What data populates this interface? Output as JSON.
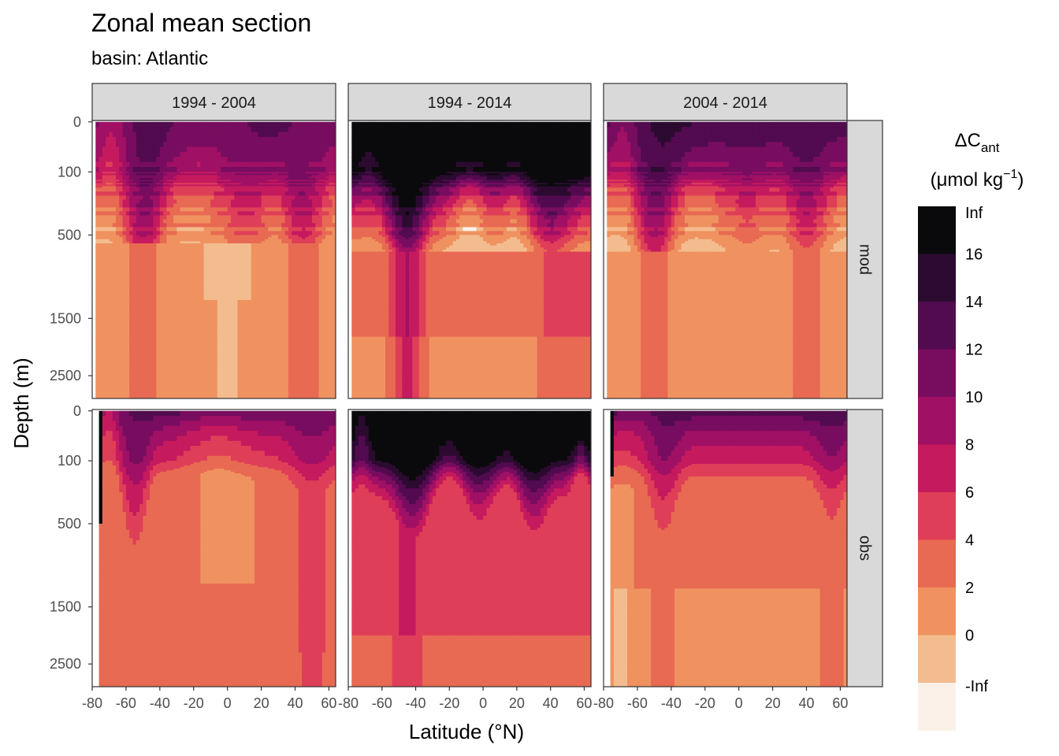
{
  "chart_data": {
    "type": "heatmap",
    "title": "Zonal mean section",
    "subtitle": "basin: Atlantic",
    "xlabel": "Latitude (°N)",
    "ylabel": "Depth (m)",
    "xlim": [
      -80,
      64
    ],
    "x_ticks": [
      -80,
      -60,
      -40,
      -20,
      0,
      20,
      40,
      60
    ],
    "x_tick_labels": [
      "-80",
      "-60",
      "-40",
      "-20",
      "0",
      "20",
      "40",
      "60"
    ],
    "y_ticks": [
      0,
      100,
      500,
      1500,
      2500
    ],
    "y_tick_labels": [
      "0",
      "100",
      "500",
      "1500",
      "2500"
    ],
    "y_scale": "sqrt, reversed",
    "columns": [
      "1994 - 2004",
      "1994 - 2014",
      "2004 - 2014"
    ],
    "rows": [
      "mod",
      "obs"
    ],
    "legend": {
      "title_main": "ΔC",
      "title_sub": "ant",
      "unit_main": "(μmol kg",
      "unit_sup": "−1",
      "unit_end": ")",
      "placement": "right",
      "labels": [
        "Inf",
        "16",
        "14",
        "12",
        "10",
        "8",
        "6",
        "4",
        "2",
        "0",
        "-Inf"
      ],
      "colors": [
        "#0a0a0c",
        "#2c0b30",
        "#520b4f",
        "#780d60",
        "#a01064",
        "#c51a5e",
        "#df3e58",
        "#e86a52",
        "#ef9260",
        "#f3bc8f",
        "#fcf1e8"
      ]
    },
    "panels": [
      {
        "column": "1994 - 2004",
        "row": "mod",
        "pattern": "Max ~12 μmol/kg at 0–300 m; low (0–2) below 600 m; tongues of deep penetration near 50°S and 45°N"
      },
      {
        "column": "1994 - 2014",
        "row": "mod",
        "pattern": "Values >16 in upper 300 m from 40°S to 60°N; deep penetration near 45°S"
      },
      {
        "column": "2004 - 2014",
        "row": "mod",
        "pattern": "Max ~12–14 at 50–300 m; low (0–2) below 800 m"
      },
      {
        "column": "1994 - 2004",
        "row": "obs",
        "pattern": "8–12 in upper 200 m; 2–6 at depth; deep 4–6 north of 40°N"
      },
      {
        "column": "1994 - 2014",
        "row": "obs",
        "pattern": ">16 in upper 250–400 m; 4–8 at mid depth; 2–6 below 1500 m"
      },
      {
        "column": "2004 - 2014",
        "row": "obs",
        "pattern": "10–14 in upper 200 m; 2–4 below 1500 m"
      }
    ]
  }
}
